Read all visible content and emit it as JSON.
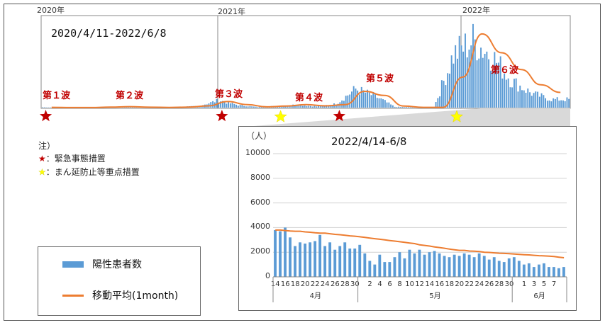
{
  "chart_data": [
    {
      "type": "bar",
      "period_label": "2020/4/11-2022/6/8",
      "year_labels": [
        "2020年",
        "2021年",
        "2022年"
      ],
      "wave_labels": [
        "第１波",
        "第２波",
        "第３波",
        "第４波",
        "第５波",
        "第６波"
      ],
      "series": [
        {
          "name": "陽性患者数",
          "color": "#5b9bd5"
        },
        {
          "name": "移動平均(1month)",
          "color": "#ed7d31"
        }
      ],
      "x": [
        "2020-04",
        "2020-05",
        "2020-06",
        "2020-07",
        "2020-08",
        "2020-09",
        "2020-10",
        "2020-11",
        "2020-12",
        "2021-01",
        "2021-02",
        "2021-03",
        "2021-04",
        "2021-05",
        "2021-06",
        "2021-07",
        "2021-08",
        "2021-09",
        "2021-10",
        "2021-11",
        "2021-12",
        "2022-01",
        "2022-02",
        "2022-03",
        "2022-04",
        "2022-05",
        "2022-06"
      ],
      "daily_peak": [
        90,
        10,
        10,
        180,
        260,
        60,
        40,
        150,
        400,
        1800,
        600,
        150,
        400,
        700,
        300,
        900,
        4600,
        2800,
        200,
        60,
        80,
        13000,
        16500,
        12500,
        6500,
        3500,
        2000
      ],
      "moving_avg": [
        60,
        20,
        10,
        100,
        200,
        90,
        40,
        100,
        350,
        1200,
        600,
        150,
        300,
        600,
        350,
        600,
        3200,
        2400,
        300,
        60,
        60,
        6000,
        14500,
        10800,
        7500,
        4500,
        3000
      ],
      "emergency_declaration_marks": [
        "2020-04",
        "2021-01",
        "2021-07"
      ],
      "priority_measure_marks": [
        "2021-04",
        "2022-01"
      ]
    },
    {
      "type": "bar",
      "title": "2022/4/14-6/8",
      "unit": "（人）",
      "ylim": [
        0,
        10000
      ],
      "y_ticks": [
        "0",
        "2000",
        "4000",
        "6000",
        "8000",
        "10000"
      ],
      "x_tick_labels": [
        "14",
        "16",
        "18",
        "20",
        "22",
        "24",
        "26",
        "28",
        "30",
        "2",
        "4",
        "6",
        "8",
        "10",
        "12",
        "14",
        "16",
        "18",
        "20",
        "22",
        "24",
        "26",
        "28",
        "30",
        "1",
        "3",
        "5",
        "7"
      ],
      "month_labels": [
        "4月",
        "5月",
        "6月"
      ],
      "series": [
        {
          "name": "陽性患者数",
          "values": [
            3800,
            3700,
            4000,
            3200,
            2500,
            2800,
            2700,
            2800,
            2900,
            3400,
            2500,
            2800,
            2200,
            2500,
            2800,
            2300,
            2300,
            2600,
            1900,
            1300,
            1000,
            1800,
            1200,
            1200,
            1600,
            2000,
            1500,
            2200,
            1900,
            2200,
            1800,
            2000,
            2100,
            1900,
            1700,
            1600,
            1800,
            1700,
            1900,
            1800,
            1600,
            1900,
            1700,
            1400,
            1600,
            1300,
            1200,
            1500,
            1600,
            1300,
            1000,
            1100,
            800,
            1000,
            1100,
            800,
            800,
            700,
            800
          ],
          "color": "#5b9bd5"
        },
        {
          "name": "移動平均(1month)",
          "values": [
            3800,
            3800,
            3760,
            3720,
            3700,
            3700,
            3650,
            3620,
            3580,
            3550,
            3550,
            3500,
            3450,
            3420,
            3380,
            3330,
            3300,
            3250,
            3200,
            3150,
            3100,
            3050,
            3000,
            2950,
            2900,
            2850,
            2800,
            2750,
            2700,
            2600,
            2550,
            2500,
            2430,
            2380,
            2320,
            2250,
            2200,
            2150,
            2150,
            2100,
            2080,
            2050,
            2000,
            1980,
            1950,
            1920,
            1900,
            1880,
            1850,
            1820,
            1800,
            1780,
            1750,
            1720,
            1700,
            1680,
            1650,
            1600,
            1550
          ],
          "color": "#ed7d31"
        }
      ]
    }
  ],
  "note": {
    "title": "注）",
    "emergency": "：緊急事態措置",
    "priority": "：まん延防止等重点措置",
    "star_red": "#c00000",
    "star_yellow": "#ffff00"
  },
  "legend": {
    "bar_label": "陽性患者数",
    "line_label": "移動平均(1month)"
  }
}
